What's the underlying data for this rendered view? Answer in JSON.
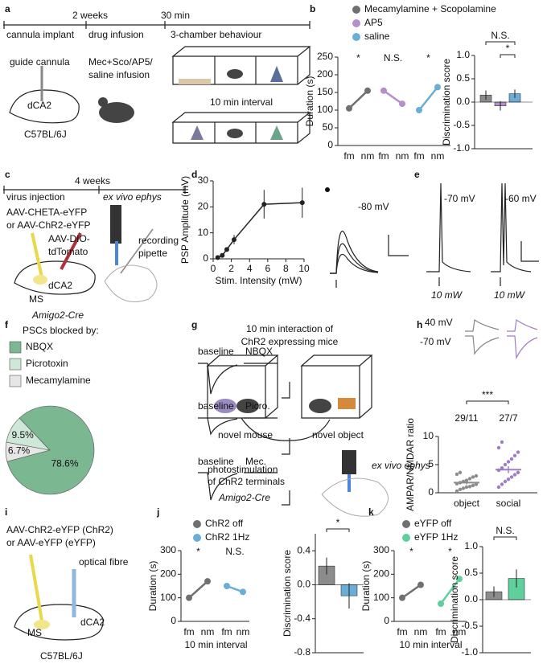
{
  "panels": {
    "letters": [
      "a",
      "b",
      "c",
      "d",
      "e",
      "f",
      "g",
      "h",
      "i",
      "j",
      "k"
    ],
    "a": {
      "labels": [
        "2 weeks",
        "30 min",
        "cannula implant",
        "drug infusion",
        "3-chamber behaviour",
        "guide cannula",
        "dCA2",
        "C57BL/6J",
        "Mec+Sco/AP5/",
        "saline infusion",
        "10 min interval"
      ]
    },
    "c": {
      "labels": [
        "4 weeks",
        "virus injection",
        "ex vivo ephys",
        "AAV-CHETA-eYFP",
        "or AAV-ChR2-eYFP",
        "AAV-DIO-",
        "tdTomato",
        "recording",
        "pipette",
        "dCA2",
        "MS",
        "Amigo2-Cre"
      ]
    },
    "d": {
      "labels": [
        "-80 mV"
      ]
    },
    "e": {
      "labels": [
        "-70 mV",
        "-60 mV",
        "10 mW",
        "10 mW"
      ]
    },
    "f": {
      "labels": [
        "baseline",
        "NBQX",
        "baseline",
        "Picro.",
        "baseline",
        "Mec."
      ]
    },
    "g": {
      "labels": [
        "10 min interaction of",
        "ChR2 expressing mice",
        "novel mouse",
        "novel object",
        "photostimulation",
        "of ChR2 terminals",
        "ex vivo ephys",
        "Amigo2-Cre"
      ]
    },
    "h": {
      "labels": [
        "40 mV",
        "-70 mV"
      ]
    },
    "i": {
      "labels": [
        "AAV-ChR2-eYFP (ChR2)",
        "or AAV-eYFP (eYFP)",
        "optical fibre",
        "dCA2",
        "MS",
        "C57BL/6J"
      ]
    }
  },
  "chart_data": [
    {
      "type": "line",
      "ylabel": "Duration (s)",
      "categories": [
        "fm",
        "nm",
        "fm",
        "nm",
        "fm",
        "nm"
      ],
      "ylim": [
        0,
        250
      ],
      "yticks": [
        0,
        50,
        100,
        150,
        200,
        250
      ],
      "series": [
        {
          "name": "Mecamylamine + Scopolamine",
          "color": "#707070",
          "values": [
            105,
            155,
            null,
            null,
            null,
            null
          ]
        },
        {
          "name": "AP5",
          "color": "#b48fcb",
          "values": [
            null,
            null,
            155,
            118,
            null,
            null
          ]
        },
        {
          "name": "saline",
          "color": "#6aaed6",
          "values": [
            null,
            null,
            null,
            null,
            100,
            165
          ]
        }
      ],
      "annotations": [
        "*",
        "N.S.",
        "*"
      ]
    },
    {
      "type": "bar",
      "ylabel": "Discrimination score",
      "values": [
        0.15,
        -0.08,
        0.18
      ],
      "errors": [
        0.1,
        0.1,
        0.09
      ],
      "colors": [
        "#8c8c8c",
        "#b48fcb",
        "#6aaed6"
      ],
      "ylim": [
        -1,
        1
      ],
      "yticks": [
        {
          "value": -1,
          "label": "-1.0"
        },
        {
          "value": -0.5,
          "label": "-0.5"
        },
        {
          "value": 0,
          "label": "0.0"
        },
        {
          "value": 0.5,
          "label": "0.5"
        },
        {
          "value": 1,
          "label": "1.0"
        }
      ],
      "annotations": [
        "N.S.",
        "*"
      ]
    },
    {
      "type": "line",
      "ylabel": "PSP Amplitude (mV)",
      "xlabel": "Stim. Intensity (mW)",
      "x": [
        0.5,
        1,
        1.5,
        2.3,
        5.6,
        9.8
      ],
      "values": [
        0.5,
        1.3,
        3.6,
        7.4,
        21,
        21.6
      ],
      "errors": [
        0.2,
        0.4,
        0.8,
        1.8,
        5.5,
        5.8
      ],
      "color": "#222222",
      "xlim": [
        0,
        10
      ],
      "xticks": [
        0,
        2,
        4,
        6,
        8,
        10
      ],
      "ylim": [
        0,
        30
      ],
      "yticks": [
        0,
        10,
        20,
        30
      ]
    },
    {
      "type": "pie",
      "legend_title": "PSCs blocked by:",
      "categories": [
        "NBQX",
        "Picrotoxin",
        "Mecamylamine"
      ],
      "values": [
        78.6,
        9.5,
        6.7
      ],
      "value_labels": [
        "78.6%",
        "9.5%",
        "6.7%"
      ],
      "colors": [
        "#7bb892",
        "#cfe7d6",
        "#e6e6e6"
      ]
    },
    {
      "type": "strip",
      "ylabel": "AMPAR/NMDAR ratio",
      "categories": [
        "object",
        "social"
      ],
      "series": [
        {
          "color": "#8c8c8c",
          "values": [
            0.3,
            0.6,
            0.8,
            1.0,
            1.1,
            1.3,
            1.5,
            1.6,
            1.8,
            2.0,
            2.2,
            2.5,
            2.8,
            3.0,
            3.3,
            3.6
          ]
        },
        {
          "color": "#a07cc5",
          "values": [
            1.0,
            1.5,
            2.0,
            2.4,
            2.8,
            3.2,
            3.6,
            4.0,
            4.4,
            5.0,
            5.5,
            6.0,
            6.6,
            7.2,
            8.0,
            9.0
          ]
        }
      ],
      "means": [
        1.8,
        4.1
      ],
      "errors": [
        0.3,
        0.6
      ],
      "ylim": [
        0,
        10
      ],
      "yticks": [
        0,
        5,
        10
      ],
      "annotations": [
        "29/11",
        "27/7",
        "***"
      ]
    },
    {
      "type": "line",
      "ylabel": "Duration (s)",
      "xlabel": "10 min interval",
      "categories": [
        "fm",
        "nm",
        "fm",
        "nm"
      ],
      "ylim": [
        0,
        300
      ],
      "yticks": [
        0,
        100,
        200,
        300
      ],
      "series": [
        {
          "name": "ChR2 off",
          "color": "#707070",
          "values": [
            100,
            170,
            null,
            null
          ]
        },
        {
          "name": "ChR2 1Hz",
          "color": "#6aaed6",
          "values": [
            null,
            null,
            150,
            125
          ]
        }
      ],
      "annotations": [
        "*",
        "N.S."
      ]
    },
    {
      "type": "bar",
      "ylabel": "Discrimination score",
      "values": [
        0.22,
        -0.13
      ],
      "errors": [
        0.1,
        0.15
      ],
      "colors": [
        "#8c8c8c",
        "#6aaed6"
      ],
      "ylim": [
        -0.8,
        0.6
      ],
      "yticks": [
        {
          "value": -0.8,
          "label": "-0.8"
        },
        {
          "value": -0.4,
          "label": "-0.4"
        },
        {
          "value": 0,
          "label": "0.0"
        },
        {
          "value": 0.4,
          "label": "0.4"
        }
      ],
      "annotations": [
        "*"
      ]
    },
    {
      "type": "line",
      "ylabel": "Duration (s)",
      "xlabel": "10 min interval",
      "categories": [
        "fm",
        "nm",
        "fm",
        "nm"
      ],
      "ylim": [
        0,
        300
      ],
      "yticks": [
        0,
        100,
        200,
        300
      ],
      "series": [
        {
          "name": "eYFP off",
          "color": "#707070",
          "values": [
            100,
            155,
            null,
            null
          ]
        },
        {
          "name": "eYFP 1Hz",
          "color": "#5fcf9c",
          "values": [
            null,
            null,
            75,
            180
          ]
        }
      ],
      "annotations": [
        "*",
        "*"
      ]
    },
    {
      "type": "bar",
      "ylabel": "Discrimination score",
      "values": [
        0.15,
        0.4
      ],
      "errors": [
        0.1,
        0.17
      ],
      "colors": [
        "#8c8c8c",
        "#5fcf9c"
      ],
      "ylim": [
        -1,
        1
      ],
      "yticks": [
        {
          "value": -1,
          "label": "-1.0"
        },
        {
          "value": -0.5,
          "label": "-0.5"
        },
        {
          "value": 0,
          "label": "0.0"
        },
        {
          "value": 0.5,
          "label": "0.5"
        },
        {
          "value": 1,
          "label": "1.0"
        }
      ],
      "annotations": [
        "N.S."
      ]
    }
  ]
}
